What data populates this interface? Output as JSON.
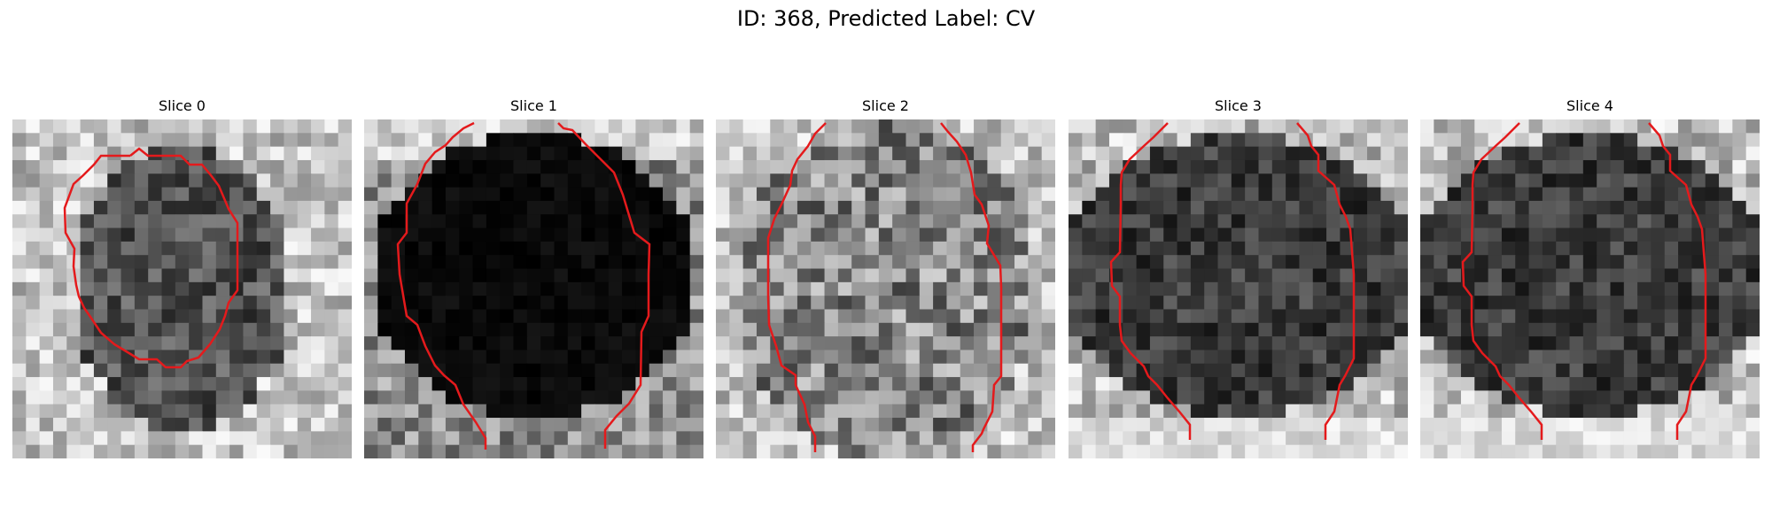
{
  "figure": {
    "title": "ID: 368, Predicted Label: CV"
  },
  "slices": [
    {
      "title": "Slice 0",
      "tone": "medium",
      "contour": "closed",
      "contour_color": "#e41a1c"
    },
    {
      "title": "Slice 1",
      "tone": "dark",
      "contour": "open-sides",
      "contour_color": "#e41a1c"
    },
    {
      "title": "Slice 2",
      "tone": "light-noisy",
      "contour": "open-sides",
      "contour_color": "#e41a1c"
    },
    {
      "title": "Slice 3",
      "tone": "dark-core",
      "contour": "open-sides",
      "contour_color": "#e41a1c"
    },
    {
      "title": "Slice 4",
      "tone": "dark-core",
      "contour": "open-sides",
      "contour_color": "#e41a1c"
    }
  ]
}
